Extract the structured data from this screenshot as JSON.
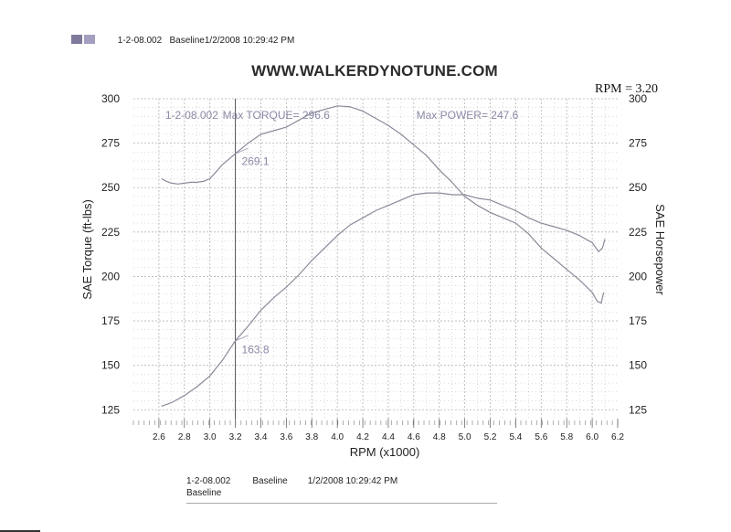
{
  "header": {
    "run_id": "1-2-08.002",
    "run_label": "Baseline1/2/2008 10:29:42 PM",
    "swatch_colors": [
      "#7f7a9c",
      "#a39fc0"
    ]
  },
  "site": "WWW.WALKERDYNOTUNE.COM",
  "rpm_readout": "RPM = 3.20",
  "chart_data": {
    "type": "line",
    "title": "",
    "xlabel": "RPM (x1000)",
    "ylabel_left": "SAE Torque (ft-lbs)",
    "ylabel_right": "SAE Horsepower",
    "xlim": [
      2.4,
      6.2
    ],
    "ylim": [
      120,
      300
    ],
    "xticks": [
      "2.6",
      "2.8",
      "3.0",
      "3.2",
      "3.4",
      "3.6",
      "3.8",
      "4.0",
      "4.2",
      "4.4",
      "4.6",
      "4.8",
      "5.0",
      "5.2",
      "5.4",
      "5.6",
      "5.8",
      "6.0",
      "6.2"
    ],
    "yticks_left": [
      "300",
      "275",
      "250",
      "225",
      "200",
      "175",
      "150",
      "125"
    ],
    "yticks_right": [
      "300",
      "275",
      "250",
      "225",
      "200",
      "175",
      "150",
      "125"
    ],
    "grid": "dotted",
    "line_color": "#8a8a9a",
    "cursor_rpm": 3.2,
    "series": [
      {
        "axis": "left",
        "x": [
          2.62,
          2.66,
          2.7,
          2.75,
          2.8,
          2.85,
          2.9,
          2.95,
          3.0,
          3.05,
          3.1,
          3.15,
          3.2,
          3.3,
          3.4,
          3.5,
          3.6,
          3.7,
          3.8,
          3.9,
          4.0,
          4.1,
          4.2,
          4.3,
          4.4,
          4.5,
          4.6,
          4.7,
          4.8,
          4.9,
          5.0,
          5.1,
          5.2,
          5.3,
          5.4,
          5.5,
          5.6,
          5.7,
          5.8,
          5.9,
          6.0,
          6.04,
          6.07,
          6.09
        ],
        "y": [
          255,
          253.5,
          252.5,
          252,
          252.5,
          253,
          253,
          253.5,
          255,
          259,
          263,
          266,
          269.1,
          275,
          280,
          282,
          284,
          288,
          292,
          294,
          296,
          295.5,
          293,
          289,
          285,
          280,
          274,
          268,
          260,
          253,
          245,
          240,
          236,
          233,
          230,
          224,
          216,
          210,
          204,
          198,
          191,
          186,
          185,
          191
        ]
      },
      {
        "axis": "right",
        "x": [
          2.62,
          2.7,
          2.8,
          2.9,
          3.0,
          3.1,
          3.2,
          3.3,
          3.4,
          3.5,
          3.6,
          3.7,
          3.8,
          3.9,
          4.0,
          4.1,
          4.2,
          4.3,
          4.4,
          4.5,
          4.6,
          4.7,
          4.8,
          4.9,
          5.0,
          5.1,
          5.2,
          5.3,
          5.4,
          5.5,
          5.6,
          5.7,
          5.8,
          5.9,
          6.0,
          6.05,
          6.08,
          6.1
        ],
        "y": [
          127,
          129,
          133,
          138,
          144,
          153,
          163.8,
          172,
          181,
          188,
          194,
          201,
          209,
          216,
          223,
          229,
          233,
          237,
          240,
          243,
          246,
          247,
          247,
          246,
          246,
          244,
          243,
          240,
          237,
          233,
          230,
          228,
          226,
          223,
          219,
          214,
          216,
          221
        ]
      }
    ],
    "annotations": [
      {
        "text": "1-2-08.002",
        "x": 2.65,
        "y": 296
      },
      {
        "text": "Max TORQUE= 296.6",
        "x": 3.1,
        "y": 296
      },
      {
        "text": "Max POWER= 247.6",
        "x": 4.62,
        "y": 296
      },
      {
        "text": "269.1",
        "x": 3.25,
        "y": 270
      },
      {
        "text": "163.8",
        "x": 3.25,
        "y": 164
      }
    ]
  },
  "legend": {
    "run_id": "1-2-08.002",
    "label": "Baseline",
    "timestamp": "1/2/2008 10:29:42 PM",
    "label2": "Baseline"
  }
}
